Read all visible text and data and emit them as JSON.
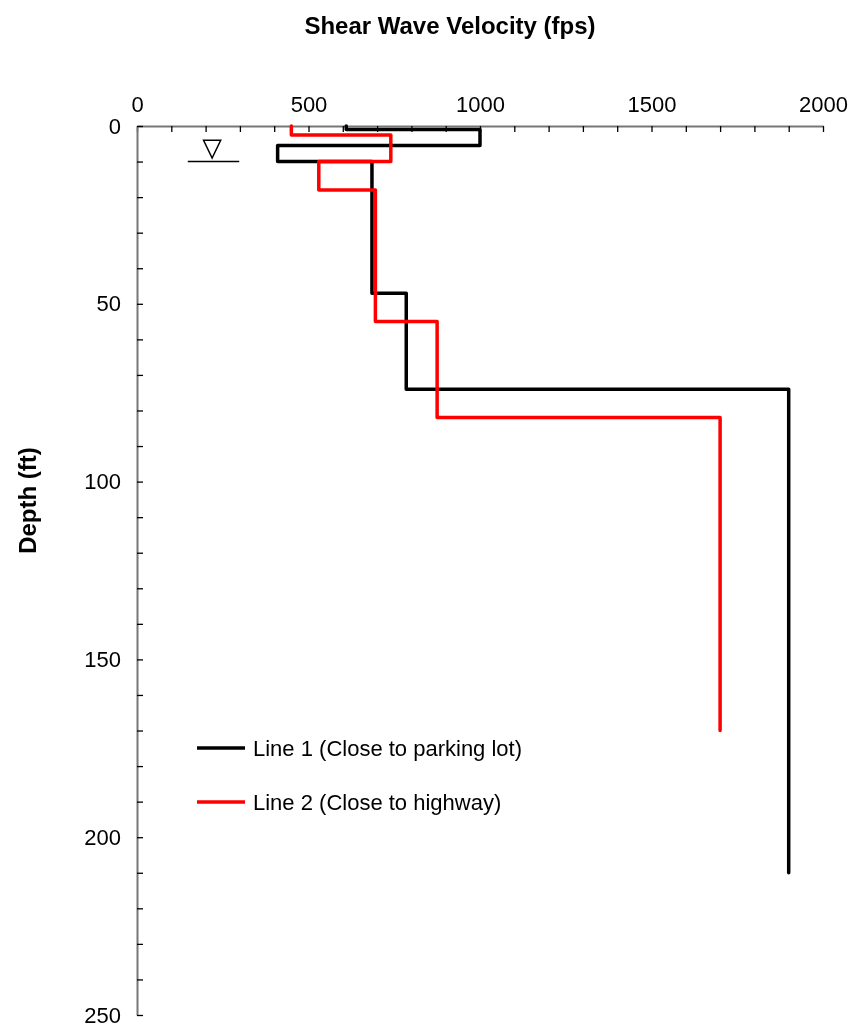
{
  "chart_data": {
    "type": "line",
    "xlabel": "Shear Wave Velocity (fps)",
    "ylabel": "Depth (ft)",
    "xlim": [
      0,
      2000
    ],
    "xticks": [
      0,
      {
        "value": 100,
        "label": null
      },
      {
        "value": 200,
        "label": null
      },
      {
        "value": 300,
        "label": null
      },
      {
        "value": 400,
        "label": null
      },
      500,
      {
        "value": 600,
        "label": null
      },
      {
        "value": 700,
        "label": null
      },
      {
        "value": 800,
        "label": null
      },
      {
        "value": 900,
        "label": null
      },
      1000,
      {
        "value": 1100,
        "label": null
      },
      {
        "value": 1200,
        "label": null
      },
      {
        "value": 1300,
        "label": null
      },
      {
        "value": 1400,
        "label": null
      },
      1500,
      {
        "value": 1600,
        "label": null
      },
      {
        "value": 1700,
        "label": null
      },
      {
        "value": 1800,
        "label": null
      },
      {
        "value": 1900,
        "label": null
      },
      2000
    ],
    "ylim": [
      250,
      0
    ],
    "yticks": [
      0,
      {
        "value": 10,
        "label": null
      },
      {
        "value": 20,
        "label": null
      },
      {
        "value": 30,
        "label": null
      },
      {
        "value": 40,
        "label": null
      },
      50,
      {
        "value": 60,
        "label": null
      },
      {
        "value": 70,
        "label": null
      },
      {
        "value": 80,
        "label": null
      },
      {
        "value": 90,
        "label": null
      },
      100,
      {
        "value": 110,
        "label": null
      },
      {
        "value": 120,
        "label": null
      },
      {
        "value": 130,
        "label": null
      },
      {
        "value": 140,
        "label": null
      },
      150,
      {
        "value": 160,
        "label": null
      },
      {
        "value": 170,
        "label": null
      },
      {
        "value": 180,
        "label": null
      },
      {
        "value": 190,
        "label": null
      },
      200,
      {
        "value": 210,
        "label": null
      },
      {
        "value": 220,
        "label": null
      },
      {
        "value": 230,
        "label": null
      },
      {
        "value": 240,
        "label": null
      },
      250
    ],
    "grid": false,
    "legend": "bottom left",
    "marker": "none",
    "line_style": "solid",
    "series": [
      {
        "name": "Line 1 (Close to parking lot)",
        "color": "#000000",
        "x": [
          610,
          610,
          1000,
          1000,
          410,
          410,
          685,
          685,
          785,
          785,
          1900,
          1900
        ],
        "values": [
          0,
          1,
          1,
          5.5,
          5.5,
          10,
          10,
          47,
          47,
          74,
          74,
          210
        ]
      },
      {
        "name": "Line 2 (Close to highway)",
        "color": "#ff0000",
        "x": [
          450,
          450,
          740,
          740,
          530,
          530,
          695,
          695,
          875,
          875,
          1700,
          1700
        ],
        "values": [
          0,
          2.5,
          2.5,
          10,
          10,
          18,
          18,
          55,
          55,
          82,
          82,
          170
        ]
      }
    ]
  }
}
